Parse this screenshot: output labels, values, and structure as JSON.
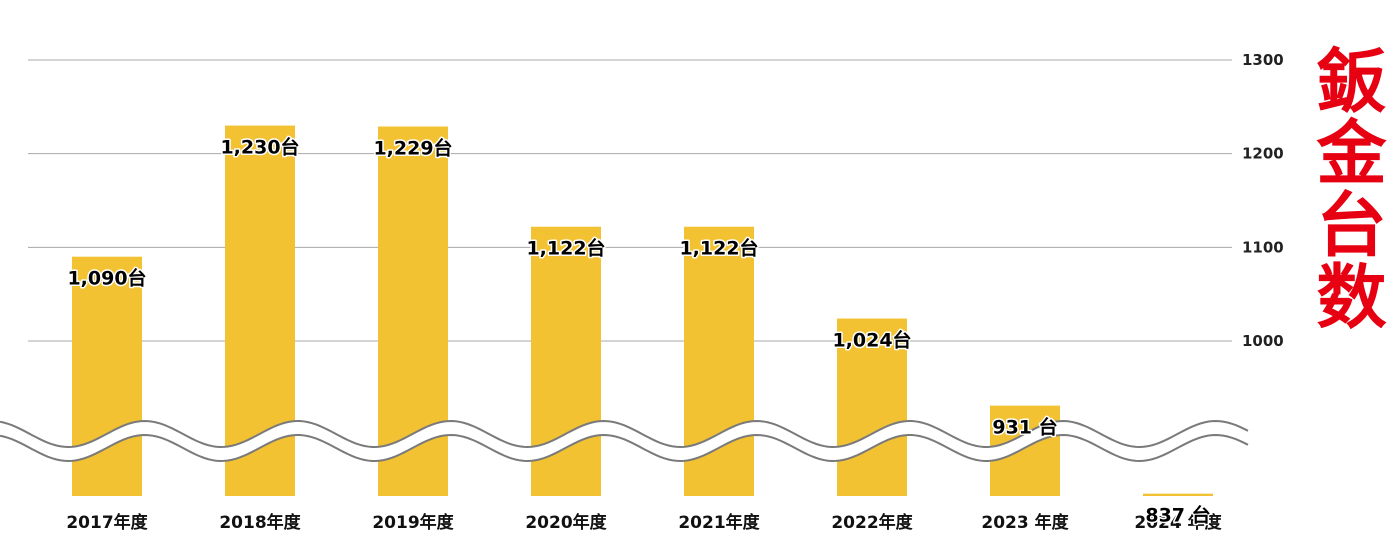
{
  "chart_data": {
    "type": "bar",
    "categories": [
      "2017年度",
      "2018年度",
      "2019年度",
      "2020年度",
      "2021年度",
      "2022年度",
      "2023 年度",
      "2024 年度"
    ],
    "values": [
      1090,
      1230,
      1229,
      1122,
      1122,
      1024,
      931,
      837
    ],
    "data_labels": [
      "1,090台",
      "1,230台",
      "1,229台",
      "1,122台",
      "1,122台",
      "1,024台",
      "931 台",
      "837 台"
    ],
    "ylabel": "鈑金台数",
    "yticks": [
      "1300",
      "1200",
      "1100",
      "1000"
    ],
    "ylim": [
      1000,
      1300
    ],
    "axis_break": true,
    "grid": true,
    "colors": {
      "bar": "#f2c232",
      "grid": "#a8a8a8",
      "break_line": "#7a7a7a",
      "ylabel": "#e60012"
    }
  }
}
